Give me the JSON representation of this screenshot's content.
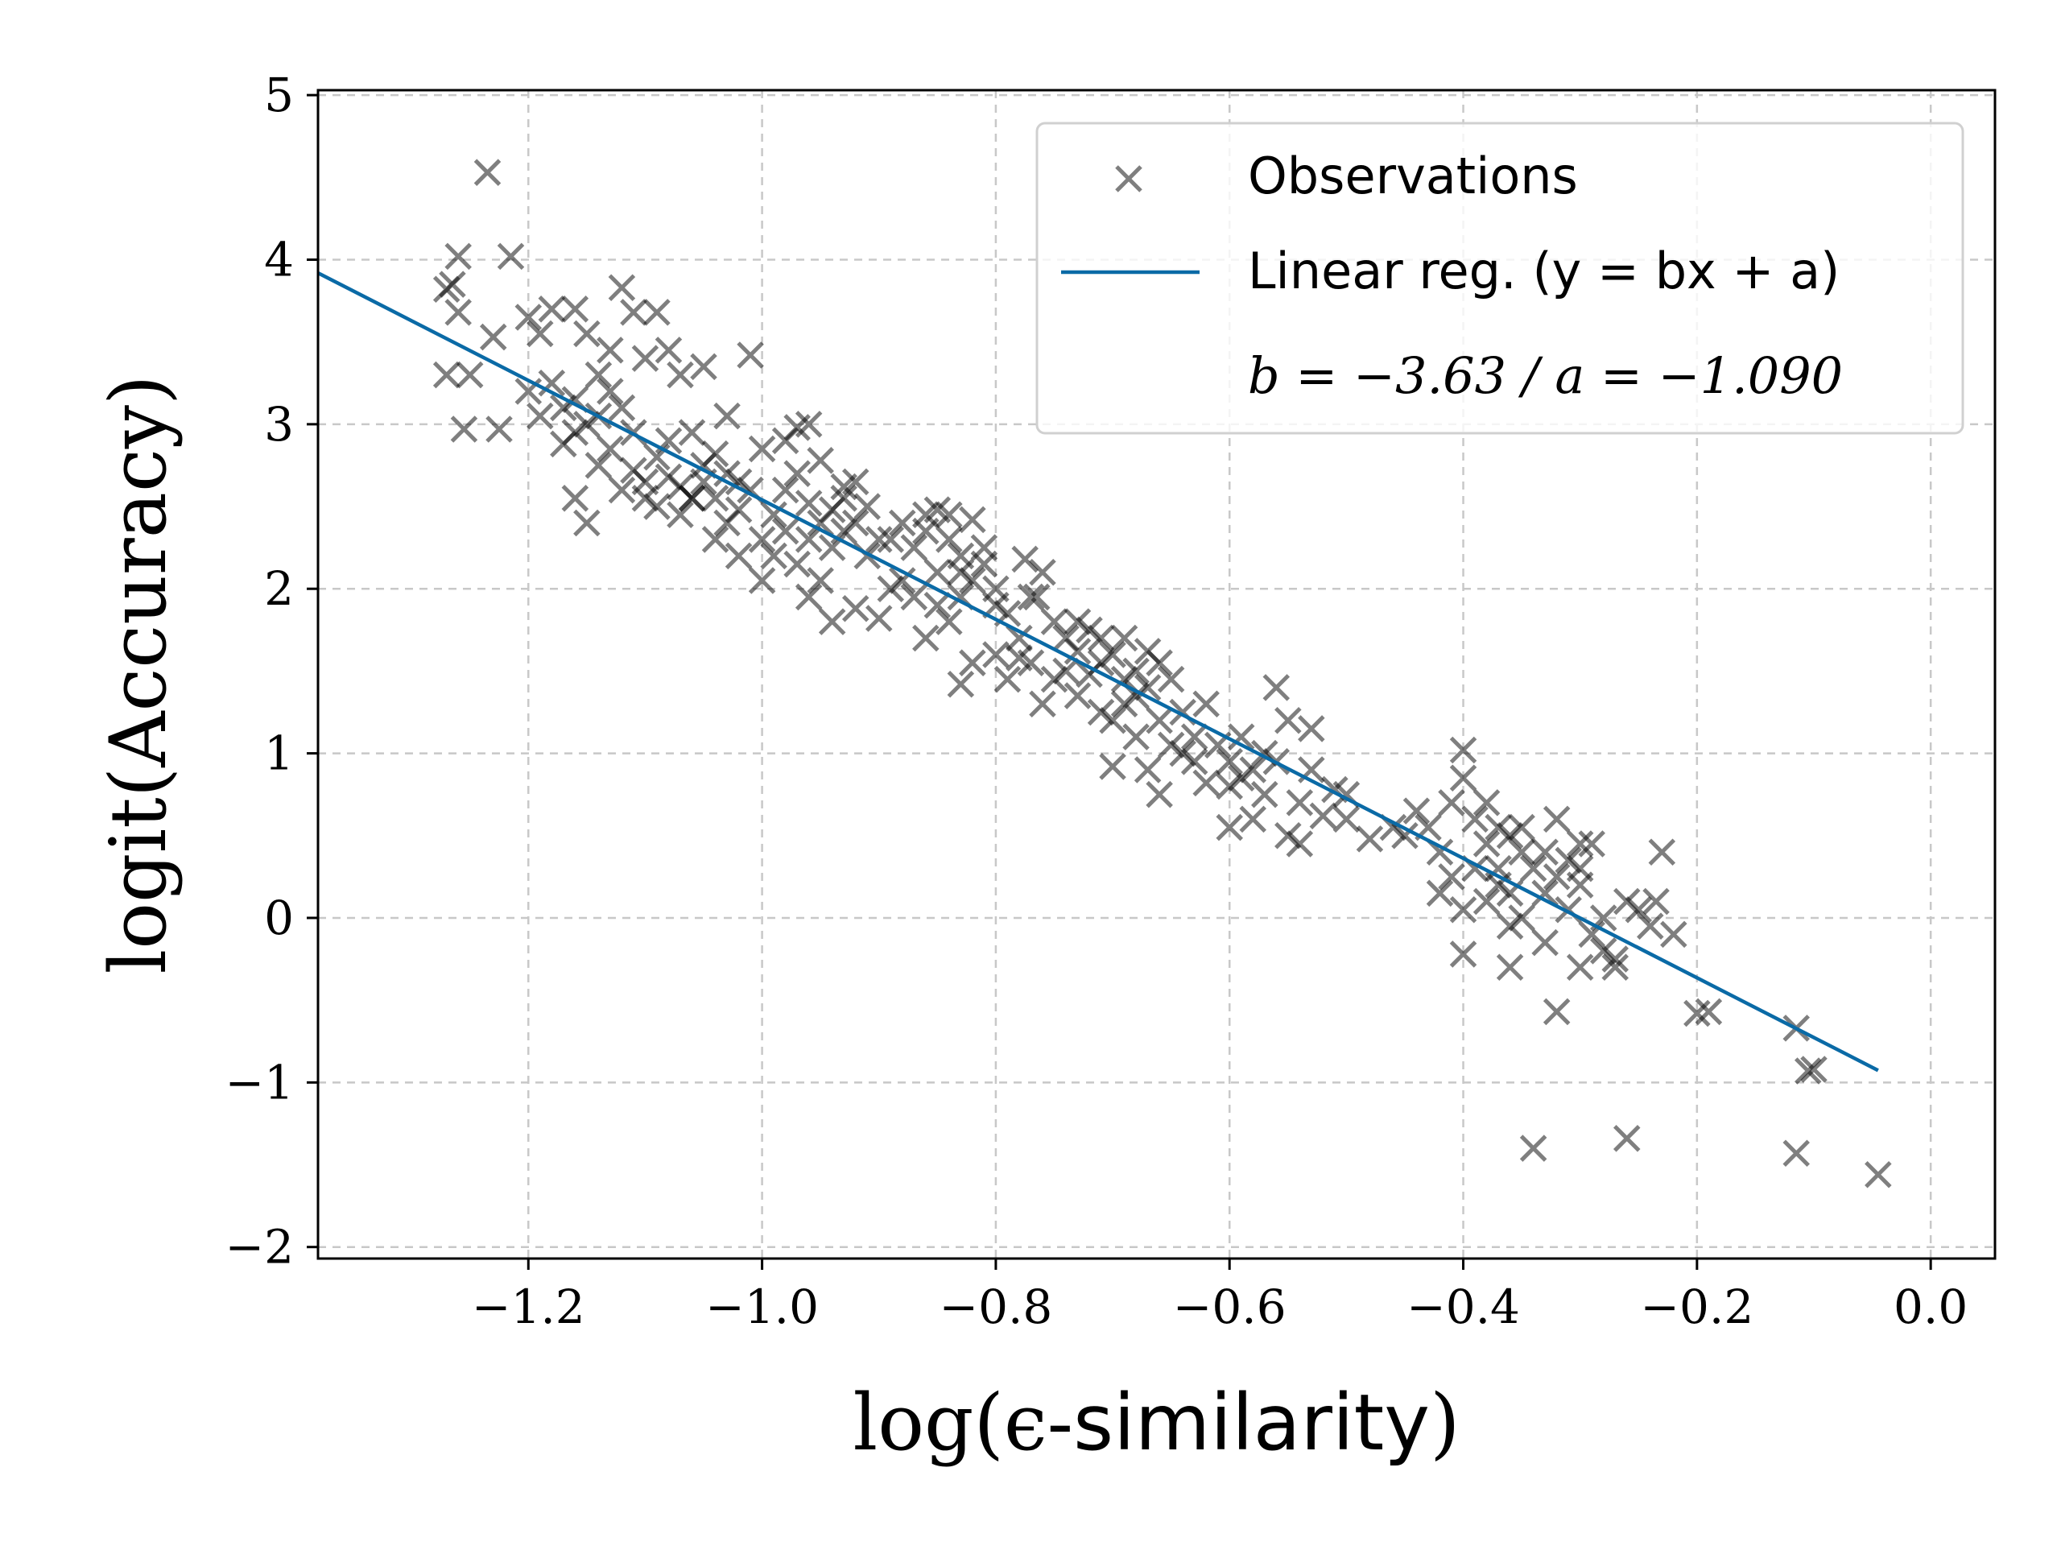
{
  "chart_data": {
    "type": "scatter",
    "xlabel_math": "log(ϵ-",
    "xlabel_text": "similarity",
    "xlabel_close": ")",
    "ylabel": "logit(Accuracy)",
    "xlim": [
      -1.38,
      0.055
    ],
    "ylim": [
      -2.07,
      5.03
    ],
    "x_ticks": [
      -1.2,
      -1.0,
      -0.8,
      -0.6,
      -0.4,
      -0.2,
      0.0
    ],
    "x_tick_labels": [
      "−1.2",
      "−1.0",
      "−0.8",
      "−0.6",
      "−0.4",
      "−0.2",
      "0.0"
    ],
    "y_ticks": [
      -2,
      -1,
      0,
      1,
      2,
      3,
      4,
      5
    ],
    "y_tick_labels": [
      "−2",
      "−1",
      "0",
      "1",
      "2",
      "3",
      "4",
      "5"
    ],
    "grid": true,
    "legend_position": "top-right",
    "legend": {
      "observations": "Observations",
      "fit_label": "Linear reg. (y = bx + a)",
      "fit_params": "b = −3.63 / a = −1.090"
    },
    "colors": {
      "observations": "#000000",
      "fit_line": "#0a6aa6"
    },
    "fit": {
      "slope": -3.63,
      "intercept": -1.09,
      "x_range": [
        -1.38,
        -0.045
      ]
    },
    "series": [
      {
        "name": "Observations",
        "points": [
          [
            -1.235,
            4.53
          ],
          [
            -1.215,
            4.02
          ],
          [
            -1.26,
            4.02
          ],
          [
            -1.265,
            3.85
          ],
          [
            -1.27,
            3.82
          ],
          [
            -1.26,
            3.68
          ],
          [
            -1.23,
            3.53
          ],
          [
            -1.27,
            3.3
          ],
          [
            -1.25,
            3.3
          ],
          [
            -1.255,
            2.97
          ],
          [
            -1.225,
            2.97
          ],
          [
            -1.2,
            3.65
          ],
          [
            -1.19,
            3.55
          ],
          [
            -1.18,
            3.7
          ],
          [
            -1.16,
            3.7
          ],
          [
            -1.15,
            3.55
          ],
          [
            -1.12,
            3.83
          ],
          [
            -1.11,
            3.68
          ],
          [
            -1.09,
            3.68
          ],
          [
            -1.14,
            3.3
          ],
          [
            -1.13,
            3.45
          ],
          [
            -1.1,
            3.4
          ],
          [
            -1.08,
            3.45
          ],
          [
            -1.07,
            3.3
          ],
          [
            -1.05,
            3.35
          ],
          [
            -1.2,
            3.2
          ],
          [
            -1.19,
            3.05
          ],
          [
            -1.17,
            2.88
          ],
          [
            -1.16,
            3.15
          ],
          [
            -1.15,
            3.0
          ],
          [
            -1.14,
            2.75
          ],
          [
            -1.13,
            2.85
          ],
          [
            -1.12,
            2.6
          ],
          [
            -1.11,
            2.72
          ],
          [
            -1.1,
            2.55
          ],
          [
            -1.09,
            2.5
          ],
          [
            -1.08,
            2.68
          ],
          [
            -1.07,
            2.62
          ],
          [
            -1.06,
            2.55
          ],
          [
            -1.05,
            2.75
          ],
          [
            -1.04,
            2.55
          ],
          [
            -1.03,
            2.7
          ],
          [
            -1.02,
            2.48
          ],
          [
            -1.01,
            2.6
          ],
          [
            -1.04,
            2.3
          ],
          [
            -1.02,
            2.2
          ],
          [
            -1.0,
            2.3
          ],
          [
            -0.99,
            2.45
          ],
          [
            -0.98,
            2.6
          ],
          [
            -0.97,
            2.7
          ],
          [
            -0.96,
            2.52
          ],
          [
            -0.95,
            2.4
          ],
          [
            -0.94,
            2.25
          ],
          [
            -0.93,
            2.35
          ],
          [
            -0.97,
            2.98
          ],
          [
            -0.96,
            3.0
          ],
          [
            -0.92,
            2.65
          ],
          [
            -0.91,
            2.5
          ],
          [
            -0.9,
            2.3
          ],
          [
            -0.89,
            2.0
          ],
          [
            -0.9,
            1.82
          ],
          [
            -0.92,
            1.88
          ],
          [
            -0.94,
            1.8
          ],
          [
            -0.95,
            2.05
          ],
          [
            -0.96,
            1.95
          ],
          [
            -1.0,
            2.05
          ],
          [
            -1.15,
            2.4
          ],
          [
            -1.16,
            2.55
          ],
          [
            -1.06,
            2.55
          ],
          [
            -1.03,
            3.05
          ],
          [
            -1.01,
            3.42
          ],
          [
            -1.0,
            2.85
          ],
          [
            -0.98,
            2.9
          ],
          [
            -0.95,
            2.78
          ],
          [
            -0.93,
            2.55
          ],
          [
            -0.87,
            2.25
          ],
          [
            -0.86,
            2.35
          ],
          [
            -0.85,
            2.1
          ],
          [
            -0.84,
            2.3
          ],
          [
            -0.83,
            2.2
          ],
          [
            -0.82,
            2.05
          ],
          [
            -0.85,
            1.9
          ],
          [
            -0.84,
            1.8
          ],
          [
            -0.86,
            1.7
          ],
          [
            -0.83,
            1.95
          ],
          [
            -0.81,
            2.15
          ],
          [
            -0.8,
            2.0
          ],
          [
            -0.82,
            2.42
          ],
          [
            -0.85,
            2.48
          ],
          [
            -0.79,
            1.85
          ],
          [
            -0.78,
            1.7
          ],
          [
            -0.8,
            1.6
          ],
          [
            -0.82,
            1.55
          ],
          [
            -0.83,
            1.42
          ],
          [
            -0.79,
            1.45
          ],
          [
            -0.77,
            1.55
          ],
          [
            -0.76,
            2.1
          ],
          [
            -0.775,
            2.18
          ],
          [
            -0.765,
            1.95
          ],
          [
            -0.75,
            1.8
          ],
          [
            -0.74,
            1.7
          ],
          [
            -0.73,
            1.62
          ],
          [
            -0.72,
            1.75
          ],
          [
            -0.71,
            1.55
          ],
          [
            -0.7,
            1.6
          ],
          [
            -0.69,
            1.7
          ],
          [
            -0.68,
            1.5
          ],
          [
            -0.67,
            1.4
          ],
          [
            -0.66,
            1.55
          ],
          [
            -0.65,
            1.45
          ],
          [
            -0.69,
            1.3
          ],
          [
            -0.7,
            1.2
          ],
          [
            -0.68,
            1.1
          ],
          [
            -0.66,
            1.2
          ],
          [
            -0.65,
            1.05
          ],
          [
            -0.76,
            1.3
          ],
          [
            -0.75,
            1.45
          ],
          [
            -0.73,
            1.35
          ],
          [
            -0.71,
            1.25
          ],
          [
            -0.7,
            0.92
          ],
          [
            -0.67,
            0.9
          ],
          [
            -0.66,
            0.75
          ],
          [
            -0.64,
            1.25
          ],
          [
            -0.63,
            1.1
          ],
          [
            -0.62,
            1.3
          ],
          [
            -0.61,
            1.05
          ],
          [
            -0.6,
            0.95
          ],
          [
            -0.59,
            1.1
          ],
          [
            -0.6,
            0.8
          ],
          [
            -0.58,
            0.9
          ],
          [
            -0.57,
            0.75
          ],
          [
            -0.56,
            0.95
          ],
          [
            -0.55,
            1.2
          ],
          [
            -0.56,
            1.4
          ],
          [
            -0.54,
            0.7
          ],
          [
            -0.53,
            0.9
          ],
          [
            -0.52,
            0.62
          ],
          [
            -0.51,
            0.78
          ],
          [
            -0.53,
            1.15
          ],
          [
            -0.6,
            0.55
          ],
          [
            -0.58,
            0.6
          ],
          [
            -0.55,
            0.5
          ],
          [
            -0.54,
            0.45
          ],
          [
            -0.5,
            0.6
          ],
          [
            -0.48,
            0.48
          ],
          [
            -0.45,
            0.5
          ],
          [
            -0.44,
            0.65
          ],
          [
            -0.43,
            0.55
          ],
          [
            -0.42,
            0.4
          ],
          [
            -0.41,
            0.7
          ],
          [
            -0.4,
            0.85
          ],
          [
            -0.4,
            1.02
          ],
          [
            -0.39,
            0.6
          ],
          [
            -0.38,
            0.45
          ],
          [
            -0.37,
            0.3
          ],
          [
            -0.36,
            0.5
          ],
          [
            -0.35,
            0.4
          ],
          [
            -0.37,
            0.2
          ],
          [
            -0.38,
            0.1
          ],
          [
            -0.39,
            0.3
          ],
          [
            -0.41,
            0.25
          ],
          [
            -0.42,
            0.15
          ],
          [
            -0.4,
            0.05
          ],
          [
            -0.36,
            0.15
          ],
          [
            -0.35,
            0.0
          ],
          [
            -0.34,
            0.3
          ],
          [
            -0.33,
            0.15
          ],
          [
            -0.32,
            0.25
          ],
          [
            -0.31,
            0.35
          ],
          [
            -0.3,
            0.2
          ],
          [
            -0.32,
            0.6
          ],
          [
            -0.3,
            0.45
          ],
          [
            -0.29,
            0.45
          ],
          [
            -0.31,
            0.05
          ],
          [
            -0.29,
            -0.1
          ],
          [
            -0.28,
            -0.2
          ],
          [
            -0.27,
            -0.3
          ],
          [
            -0.28,
            0.0
          ],
          [
            -0.26,
            0.1
          ],
          [
            -0.25,
            0.05
          ],
          [
            -0.24,
            -0.05
          ],
          [
            -0.23,
            0.4
          ],
          [
            -0.22,
            -0.1
          ],
          [
            -0.235,
            0.1
          ],
          [
            -0.3,
            -0.3
          ],
          [
            -0.33,
            -0.15
          ],
          [
            -0.36,
            -0.05
          ],
          [
            -0.4,
            -0.22
          ],
          [
            -0.36,
            -0.3
          ],
          [
            -0.32,
            -0.57
          ],
          [
            -0.34,
            -1.4
          ],
          [
            -0.26,
            -1.34
          ],
          [
            -0.2,
            -0.58
          ],
          [
            -0.19,
            -0.57
          ],
          [
            -0.115,
            -0.67
          ],
          [
            -0.1,
            -0.92
          ],
          [
            -0.105,
            -0.93
          ],
          [
            -0.115,
            -1.43
          ],
          [
            -0.045,
            -1.56
          ],
          [
            -1.13,
            3.2
          ],
          [
            -1.12,
            3.1
          ],
          [
            -1.11,
            2.95
          ],
          [
            -1.09,
            2.8
          ],
          [
            -1.08,
            2.9
          ],
          [
            -1.06,
            2.95
          ],
          [
            -1.05,
            2.65
          ],
          [
            -1.04,
            2.82
          ],
          [
            -1.03,
            2.4
          ],
          [
            -0.99,
            2.2
          ],
          [
            -0.97,
            2.15
          ],
          [
            -0.96,
            2.3
          ],
          [
            -0.94,
            2.48
          ],
          [
            -0.93,
            2.62
          ],
          [
            -0.91,
            2.2
          ],
          [
            -0.88,
            2.05
          ],
          [
            -0.87,
            1.95
          ],
          [
            -0.86,
            2.45
          ],
          [
            -0.84,
            2.45
          ],
          [
            -0.81,
            2.25
          ],
          [
            -0.8,
            1.9
          ],
          [
            -0.78,
            1.58
          ],
          [
            -0.74,
            1.5
          ],
          [
            -0.72,
            1.48
          ],
          [
            -0.69,
            1.45
          ],
          [
            -0.67,
            1.62
          ],
          [
            -0.63,
            0.95
          ],
          [
            -0.62,
            0.82
          ],
          [
            -0.57,
            1.0
          ],
          [
            -0.37,
            0.55
          ],
          [
            -0.38,
            0.7
          ],
          [
            -0.35,
            0.55
          ],
          [
            -0.33,
            0.4
          ],
          [
            -0.3,
            0.3
          ],
          [
            -0.27,
            -0.25
          ],
          [
            -1.18,
            3.25
          ],
          [
            -1.17,
            3.1
          ],
          [
            -1.16,
            2.95
          ],
          [
            -1.14,
            3.05
          ],
          [
            -1.1,
            2.65
          ],
          [
            -1.07,
            2.45
          ],
          [
            -1.02,
            2.65
          ],
          [
            -0.98,
            2.35
          ],
          [
            -0.92,
            2.4
          ],
          [
            -0.89,
            2.3
          ],
          [
            -0.88,
            2.4
          ],
          [
            -0.83,
            2.1
          ],
          [
            -0.77,
            1.95
          ],
          [
            -0.73,
            1.8
          ],
          [
            -0.71,
            1.7
          ],
          [
            -0.68,
            1.35
          ],
          [
            -0.64,
            1.0
          ],
          [
            -0.59,
            0.85
          ],
          [
            -0.5,
            0.75
          ],
          [
            -0.46,
            0.55
          ]
        ]
      }
    ]
  }
}
